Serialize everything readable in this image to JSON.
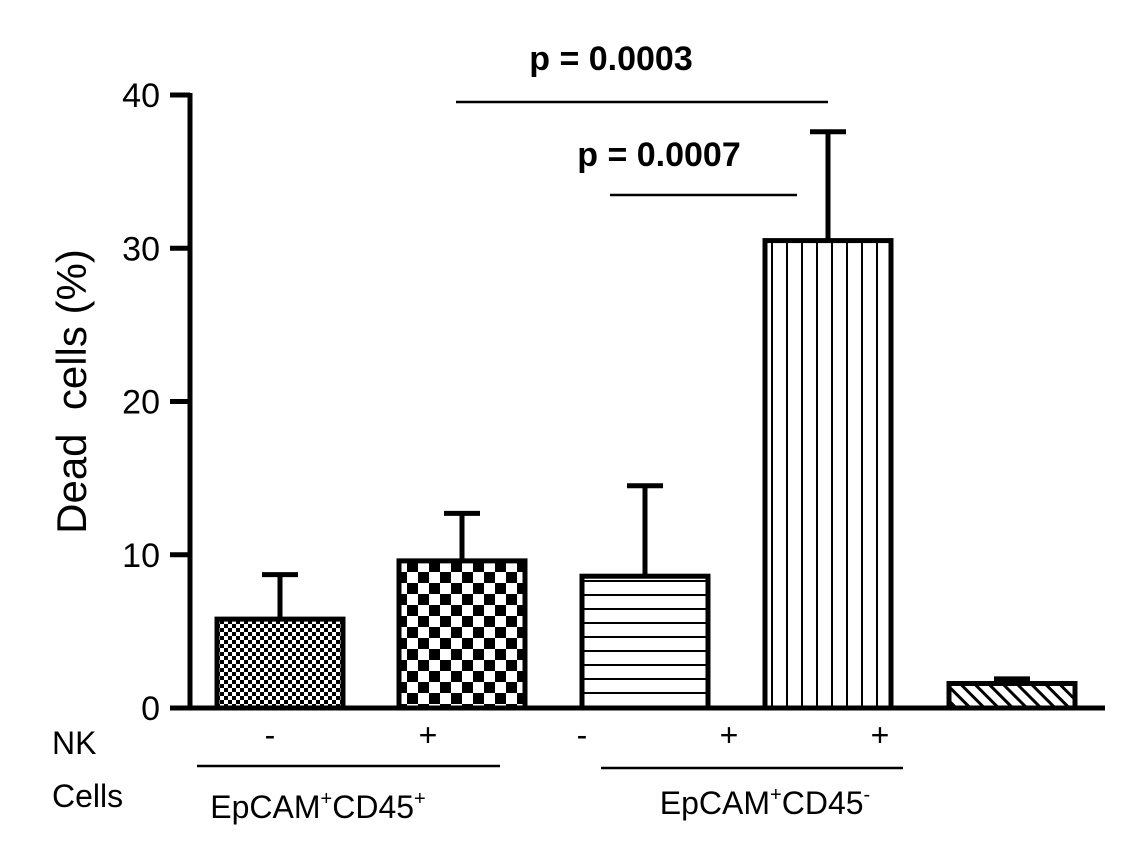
{
  "chart_data": {
    "type": "bar",
    "title": "",
    "ylabel": "Dead  cells (%)",
    "xlabel": "",
    "ylim": [
      0,
      40
    ],
    "yticks": [
      0,
      10,
      20,
      30,
      40
    ],
    "grid": false,
    "bars": [
      {
        "value": 5.8,
        "error": 2.9,
        "pattern": "fine-checker",
        "nk": "-"
      },
      {
        "value": 9.6,
        "error": 3.1,
        "pattern": "coarse-checker",
        "nk": "+"
      },
      {
        "value": 8.6,
        "error": 5.9,
        "pattern": "horizontal-lines",
        "nk": "-"
      },
      {
        "value": 0,
        "error": 0,
        "pattern": "none",
        "nk": "+"
      },
      {
        "value": 30.5,
        "error": 7.1,
        "pattern": "vertical-lines",
        "nk": "+"
      },
      {
        "value": 1.6,
        "error": 0.3,
        "pattern": "diagonal-lines",
        "nk": ""
      }
    ],
    "annotations": [
      {
        "text": "p = 0.0003",
        "from_bar": 1,
        "to_bar": 4,
        "y": 39.5
      },
      {
        "text": "p = 0.0007",
        "from_bar": 3,
        "to_bar": 4,
        "y": 33.3
      }
    ],
    "row_label": {
      "line1": "NK",
      "line2": "Cells"
    },
    "groups": [
      {
        "base": "EpCAM",
        "sup1": "+",
        "mid": "CD45",
        "sup2": "+",
        "from_bar": 0,
        "to_bar": 1
      },
      {
        "base": "EpCAM",
        "sup1": "+",
        "mid": "CD45",
        "sup2": "-",
        "from_bar": 2,
        "to_bar": 4
      }
    ]
  }
}
